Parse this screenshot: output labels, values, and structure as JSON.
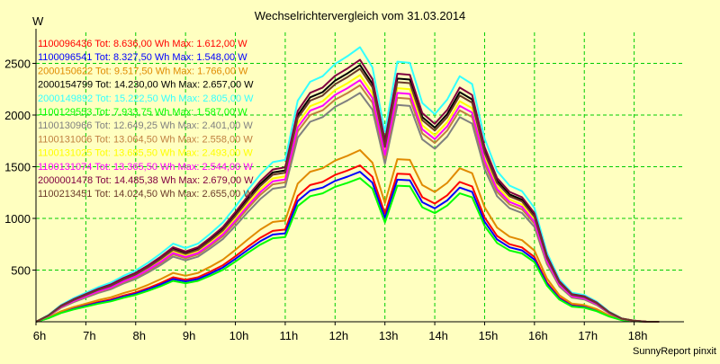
{
  "chart_data": {
    "type": "line",
    "title": "Wechselrichtervergleich vom 31.03.2014",
    "ylabel": "W",
    "footer": "SunnyReport pinxit",
    "ylim": [
      0,
      2800
    ],
    "xlim": [
      6,
      19
    ],
    "yticks": [
      500,
      1000,
      1500,
      2000,
      2500
    ],
    "xticks": [
      "6h",
      "7h",
      "8h",
      "9h",
      "10h",
      "11h",
      "12h",
      "13h",
      "14h",
      "15h",
      "16h",
      "17h",
      "18h"
    ],
    "grid": true,
    "background": "#ffffc0",
    "gridColor": "#00cc00",
    "x": [
      6.0,
      6.25,
      6.5,
      6.75,
      7.0,
      7.25,
      7.5,
      7.75,
      8.0,
      8.25,
      8.5,
      8.75,
      9.0,
      9.25,
      9.5,
      9.75,
      10.0,
      10.25,
      10.5,
      10.75,
      11.0,
      11.25,
      11.5,
      11.75,
      12.0,
      12.25,
      12.5,
      12.75,
      13.0,
      13.25,
      13.5,
      13.75,
      14.0,
      14.25,
      14.5,
      14.75,
      15.0,
      15.25,
      15.5,
      15.75,
      16.0,
      16.25,
      16.5,
      16.75,
      17.0,
      17.25,
      17.5,
      17.75,
      18.0,
      18.25,
      18.5
    ],
    "base": [
      0,
      60,
      150,
      210,
      260,
      310,
      350,
      410,
      460,
      530,
      610,
      700,
      660,
      700,
      790,
      890,
      1030,
      1180,
      1320,
      1430,
      1450,
      1980,
      2150,
      2200,
      2310,
      2380,
      2460,
      2280,
      1700,
      2330,
      2320,
      1960,
      1860,
      1990,
      2200,
      2130,
      1640,
      1350,
      1220,
      1170,
      1020,
      620,
      380,
      260,
      240,
      180,
      90,
      30,
      10,
      0,
      0
    ],
    "series": [
      {
        "id": "1100096436",
        "total": "8.636,00 Wh",
        "max": "1.612,00 W",
        "color": "#ff0000",
        "scale": 0.615
      },
      {
        "id": "1100096541",
        "total": "8.327,50 Wh",
        "max": "1.548,00 W",
        "color": "#0000ff",
        "scale": 0.59
      },
      {
        "id": "2000150622",
        "total": "9.517,50 Wh",
        "max": "1.766,00 W",
        "color": "#e08a00",
        "scale": 0.675
      },
      {
        "id": "2000154799",
        "total": "14.230,00 Wh",
        "max": "2.657,00 W",
        "color": "#000000",
        "scale": 1.01
      },
      {
        "id": "2000149892",
        "total": "15.222,50 Wh",
        "max": "2.805,00 W",
        "color": "#33ffff",
        "scale": 1.08
      },
      {
        "id": "1100129553",
        "total": "7.933,75 Wh",
        "max": "1.587,00 W",
        "color": "#00ff00",
        "scale": 0.565
      },
      {
        "id": "1100130966",
        "total": "12.649,25 Wh",
        "max": "2.401,00 W",
        "color": "#808080",
        "scale": 0.9
      },
      {
        "id": "1100131006",
        "total": "13.064,50 Wh",
        "max": "2.558,00 W",
        "color": "#c08040",
        "scale": 0.93
      },
      {
        "id": "1100131025",
        "total": "13.685,50 Wh",
        "max": "2.493,00 W",
        "color": "#ffff00",
        "scale": 0.97
      },
      {
        "id": "1100131074",
        "total": "13.365,50 Wh",
        "max": "2.544,00 W",
        "color": "#ff00ff",
        "scale": 0.95
      },
      {
        "id": "2000001478",
        "total": "14.485,38 Wh",
        "max": "2.679,00 W",
        "color": "#800040",
        "scale": 1.03
      },
      {
        "id": "1100213451",
        "total": "14.024,50 Wh",
        "max": "2.655,00 W",
        "color": "#6b3a2a",
        "scale": 0.995
      }
    ],
    "legendPrefixTot": "Tot:",
    "legendPrefixMax": "Max:"
  }
}
